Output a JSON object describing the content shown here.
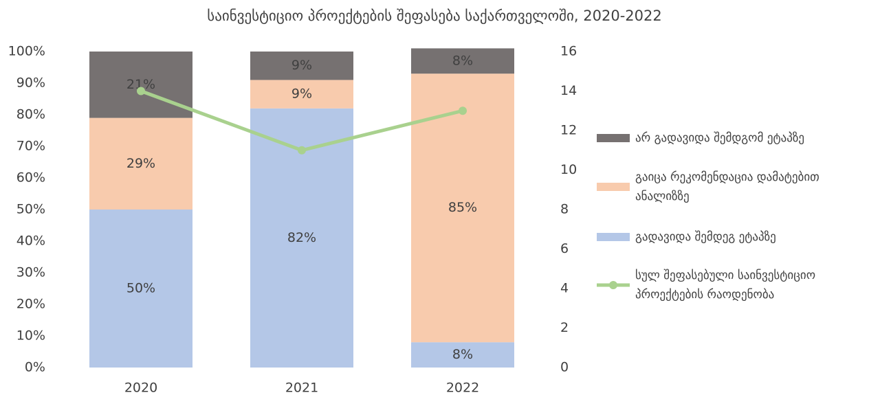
{
  "chart_data": {
    "type": "bar",
    "stacked": true,
    "title": "საინვესტიციო პროექტების შეფასება საქართველოში, 2020-2022",
    "categories": [
      "2020",
      "2021",
      "2022"
    ],
    "series": [
      {
        "name": "გადავიდა შემდეგ ეტაპზე",
        "color": "#b4c7e7",
        "values": [
          50,
          82,
          8
        ],
        "value_labels": [
          "50%",
          "82%",
          "8%"
        ]
      },
      {
        "name": "გაიცა რეკომენდაცია დამატებით ანალიზზე",
        "color": "#f8cbad",
        "values": [
          29,
          9,
          85
        ],
        "value_labels": [
          "29%",
          "9%",
          "85%"
        ]
      },
      {
        "name": "არ გადავიდა შემდგომ ეტაპზე",
        "color": "#767171",
        "values": [
          21,
          9,
          8
        ],
        "value_labels": [
          "21%",
          "9%",
          "8%"
        ]
      },
      {
        "name": "სულ შეფასებული საინვესტიციო პროექტების რაოდენობა",
        "color": "#a9d18e",
        "type": "line",
        "axis": "y2",
        "values": [
          14,
          11,
          13
        ]
      }
    ],
    "ylim": [
      0,
      100
    ],
    "yticks": [
      {
        "value": 0,
        "label": "0%"
      },
      {
        "value": 10,
        "label": "10%"
      },
      {
        "value": 20,
        "label": "20%"
      },
      {
        "value": 30,
        "label": "30%"
      },
      {
        "value": 40,
        "label": "40%"
      },
      {
        "value": 50,
        "label": "50%"
      },
      {
        "value": 60,
        "label": "60%"
      },
      {
        "value": 70,
        "label": "70%"
      },
      {
        "value": 80,
        "label": "80%"
      },
      {
        "value": 90,
        "label": "90%"
      },
      {
        "value": 100,
        "label": "100%"
      }
    ],
    "y2lim": [
      0,
      16
    ],
    "y2ticks": [
      0,
      2,
      4,
      6,
      8,
      10,
      12,
      14,
      16
    ],
    "legend": "right"
  }
}
